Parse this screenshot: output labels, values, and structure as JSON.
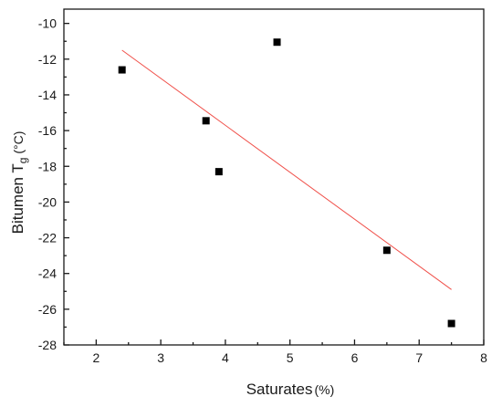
{
  "chart_data": {
    "type": "scatter",
    "xlabel": "Saturates",
    "xlabel_unit": "(%)",
    "ylabel_main": "Bitumen T",
    "ylabel_sub": "g",
    "ylabel_unit": " (°C)",
    "xlim": [
      1.5,
      8
    ],
    "ylim": [
      -28,
      -9.2
    ],
    "x_ticks": [
      2,
      3,
      4,
      5,
      6,
      7,
      8
    ],
    "y_ticks": [
      -28,
      -26,
      -24,
      -22,
      -20,
      -18,
      -16,
      -14,
      -12,
      -10
    ],
    "x_tick_labels": [
      "2",
      "3",
      "4",
      "5",
      "6",
      "7",
      "8"
    ],
    "y_tick_labels": [
      "-28",
      "-26",
      "-24",
      "-22",
      "-20",
      "-18",
      "-16",
      "-14",
      "-12",
      "-10"
    ],
    "grid": false,
    "series": [
      {
        "type": "scatter",
        "marker": "square",
        "color": "#000000",
        "points": [
          {
            "x": 2.4,
            "y": -12.6
          },
          {
            "x": 3.7,
            "y": -15.45
          },
          {
            "x": 3.9,
            "y": -18.3
          },
          {
            "x": 4.8,
            "y": -11.05
          },
          {
            "x": 6.5,
            "y": -22.7
          },
          {
            "x": 7.5,
            "y": -26.8
          }
        ]
      },
      {
        "type": "line",
        "style": "linear-fit",
        "color": "#f0504a",
        "points": [
          {
            "x": 2.4,
            "y": -11.5
          },
          {
            "x": 7.5,
            "y": -24.9
          }
        ]
      }
    ]
  }
}
